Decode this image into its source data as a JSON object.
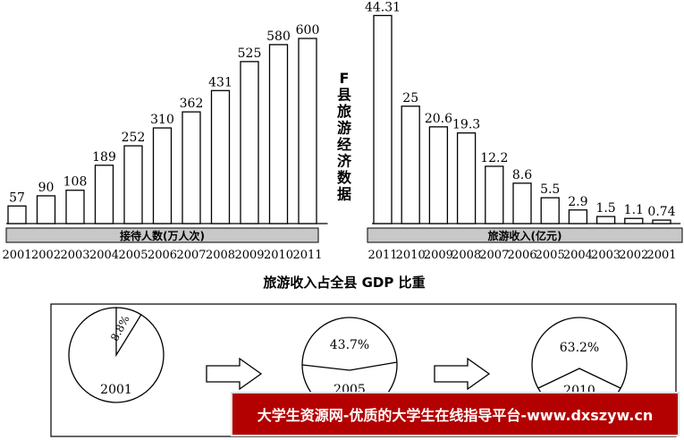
{
  "chart_data": [
    {
      "type": "bar",
      "categories": [
        "2001",
        "2002",
        "2003",
        "2004",
        "2005",
        "2006",
        "2007",
        "2008",
        "2009",
        "2010",
        "2011"
      ],
      "values": [
        57,
        90,
        108,
        189,
        252,
        310,
        362,
        431,
        525,
        580,
        600
      ],
      "data_labels": [
        "57",
        "90",
        "108",
        "189",
        "252",
        "310",
        "362",
        "431",
        "525",
        "580",
        "600"
      ],
      "xlabel": "接待人数(万人次)"
    },
    {
      "type": "bar",
      "categories": [
        "2011",
        "2010",
        "2009",
        "2008",
        "2007",
        "2006",
        "2005",
        "2004",
        "2003",
        "2002",
        "2001"
      ],
      "values": [
        44.31,
        25,
        20.6,
        19.3,
        12.2,
        8.6,
        5.5,
        2.9,
        1.5,
        1.1,
        0.74
      ],
      "data_labels": [
        "44.31",
        "25",
        "20.6",
        "19.3",
        "12.2",
        "8.6",
        "5.5",
        "2.9",
        "1.5",
        "1.1",
        "0.74"
      ],
      "xlabel": "旅游收入(亿元)"
    },
    {
      "type": "pie",
      "title": "旅游收入占全县 GDP 比重",
      "pies": [
        {
          "year": "2001",
          "share": 8.8,
          "label": "8.8%"
        },
        {
          "year": "2005",
          "share": 43.7,
          "label": "43.7%"
        },
        {
          "year": "2010",
          "share": 63.2,
          "label": "63.2%"
        }
      ]
    }
  ],
  "side_title": "F县旅游经济数据",
  "watermark": "大学生资源网-优质的大学生在线指导平台-www.dxszyw.cn"
}
